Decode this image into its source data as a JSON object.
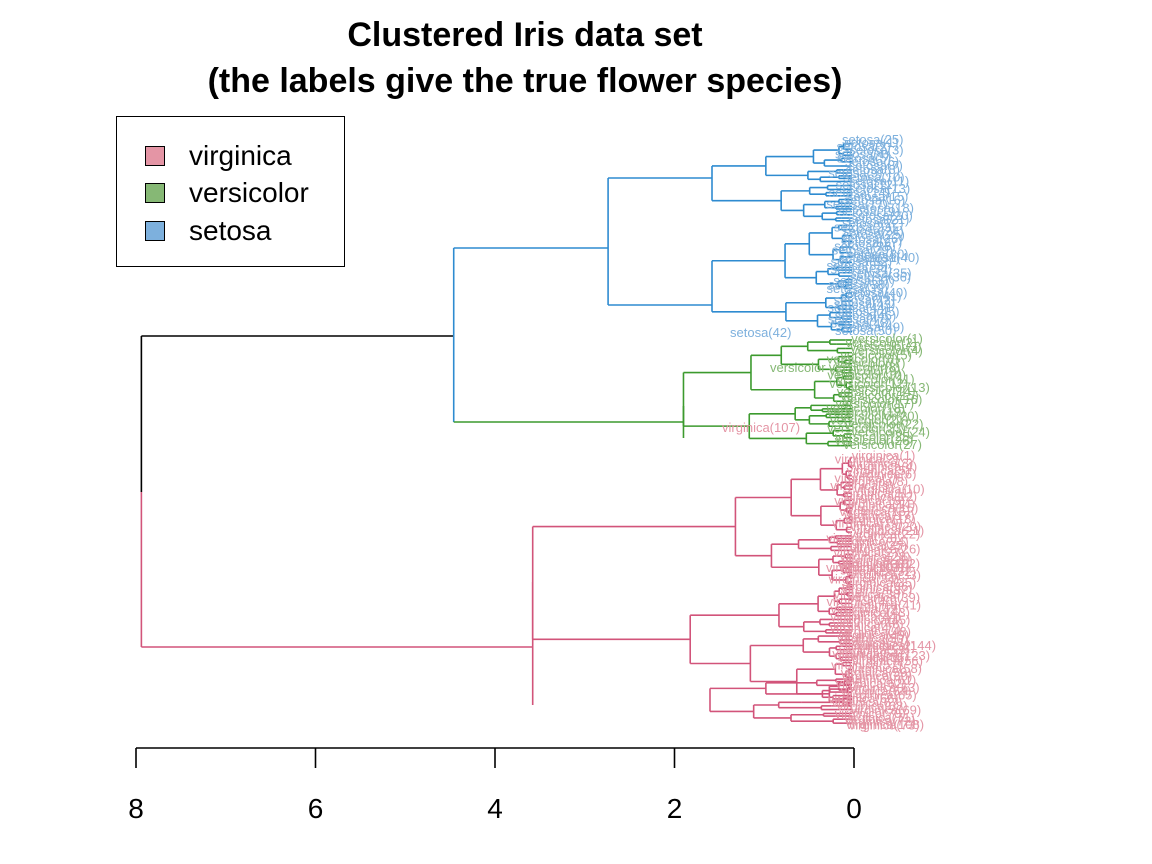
{
  "chart_data": {
    "type": "dendrogram",
    "title_lines": [
      "Clustered Iris data set",
      "(the labels give the true flower species)"
    ],
    "legend_placement": "top-left",
    "legend": [
      {
        "name": "virginica",
        "color": "#E495A5"
      },
      {
        "name": "versicolor",
        "color": "#86B875"
      },
      {
        "name": "setosa",
        "color": "#7DB0DD"
      }
    ],
    "branch_colors": {
      "root": "#000000",
      "virginica": "#D2547A",
      "versicolor": "#3C9A2E",
      "setosa": "#2E8BD0"
    },
    "x_axis": {
      "ticks": [
        8,
        6,
        4,
        2,
        0
      ],
      "range": [
        8,
        0
      ],
      "direction": "reversed"
    },
    "merge_heights": {
      "root": 7.94,
      "setosa_versicolor": 4.46,
      "setosa": 2.74,
      "versicolor": 1.9,
      "virginica_cluster": 3.58
    },
    "readable_leaf_labels": [
      {
        "label": "setosa(25)",
        "species": "setosa"
      },
      {
        "label": "setosa(40)",
        "species": "setosa"
      },
      {
        "label": "setosa(42)",
        "species": "setosa"
      },
      {
        "label": "versicolor",
        "species": "versicolor"
      },
      {
        "label": "virginica(107)",
        "species": "virginica"
      },
      {
        "label": "virginica(103)",
        "species": "virginica"
      },
      {
        "label": "virginica(102)",
        "species": "virginica"
      },
      {
        "label": "virginica(108)",
        "species": "virginica"
      },
      {
        "label": "virginica(144)",
        "species": "virginica"
      },
      {
        "label": "virginica(123)",
        "species": "virginica"
      }
    ],
    "clusters": [
      {
        "name": "setosa",
        "leaf_count": 50,
        "dominant_species": "setosa"
      },
      {
        "name": "versicolor",
        "leaf_count": 27,
        "dominant_species": "versicolor"
      },
      {
        "name": "virginica",
        "leaf_count": 73,
        "dominant_species": "virginica"
      }
    ]
  }
}
